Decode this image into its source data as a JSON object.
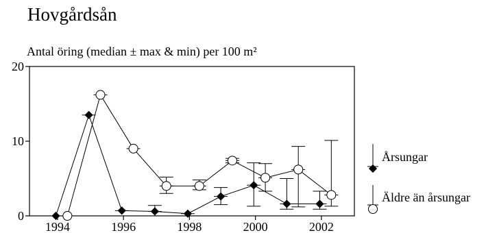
{
  "title": "Hovgårdsån",
  "subtitle": "Antal öring (median ± max & min) per 100 m²",
  "chart_data": {
    "type": "line",
    "title": "Hovgårdsån",
    "subtitle": "Antal öring (median ± max & min) per 100 m²",
    "xlabel": "",
    "ylabel": "",
    "xlim": [
      1993.15,
      2003.0
    ],
    "ylim": [
      0,
      20
    ],
    "x_ticks": [
      "1994",
      "1996",
      "1998",
      "2000",
      "2002"
    ],
    "y_ticks": [
      "0",
      "10",
      "20"
    ],
    "grid": false,
    "legend_position": "right",
    "series": [
      {
        "name": "Årsungar",
        "marker": "filled-diamond",
        "color": "#000000",
        "points": [
          {
            "x": 1993.95,
            "y": 0,
            "min": null,
            "max": null
          },
          {
            "x": 1994.95,
            "y": 13.5,
            "min": null,
            "max": null
          },
          {
            "x": 1995.95,
            "y": 0.7,
            "min": null,
            "max": null
          },
          {
            "x": 1996.95,
            "y": 0.6,
            "min": 0,
            "max": 1.4
          },
          {
            "x": 1997.95,
            "y": 0.3,
            "min": null,
            "max": null
          },
          {
            "x": 1998.95,
            "y": 2.6,
            "min": 1.5,
            "max": 3.8
          },
          {
            "x": 1999.95,
            "y": 4.1,
            "min": 1.3,
            "max": 7.1
          },
          {
            "x": 2000.95,
            "y": 1.6,
            "min": 0.9,
            "max": 5.0
          },
          {
            "x": 2001.95,
            "y": 1.6,
            "min": 0.9,
            "max": 3.3
          }
        ]
      },
      {
        "name": "Äldre än årsungar",
        "marker": "open-circle",
        "color": "#000000",
        "points": [
          {
            "x": 1994.3,
            "y": 0,
            "min": null,
            "max": null
          },
          {
            "x": 1995.3,
            "y": 16.2,
            "min": null,
            "max": null
          },
          {
            "x": 1996.3,
            "y": 9.0,
            "min": null,
            "max": null
          },
          {
            "x": 1997.3,
            "y": 4.0,
            "min": 3.0,
            "max": 5.2
          },
          {
            "x": 1998.3,
            "y": 4.0,
            "min": 3.5,
            "max": 4.8
          },
          {
            "x": 1999.3,
            "y": 7.4,
            "min": 7.1,
            "max": 7.7
          },
          {
            "x": 2000.3,
            "y": 5.1,
            "min": 3.3,
            "max": 7.0
          },
          {
            "x": 2001.3,
            "y": 6.2,
            "min": 1.2,
            "max": 9.3
          },
          {
            "x": 2002.3,
            "y": 2.8,
            "min": 1.3,
            "max": 10.1
          }
        ]
      }
    ]
  }
}
